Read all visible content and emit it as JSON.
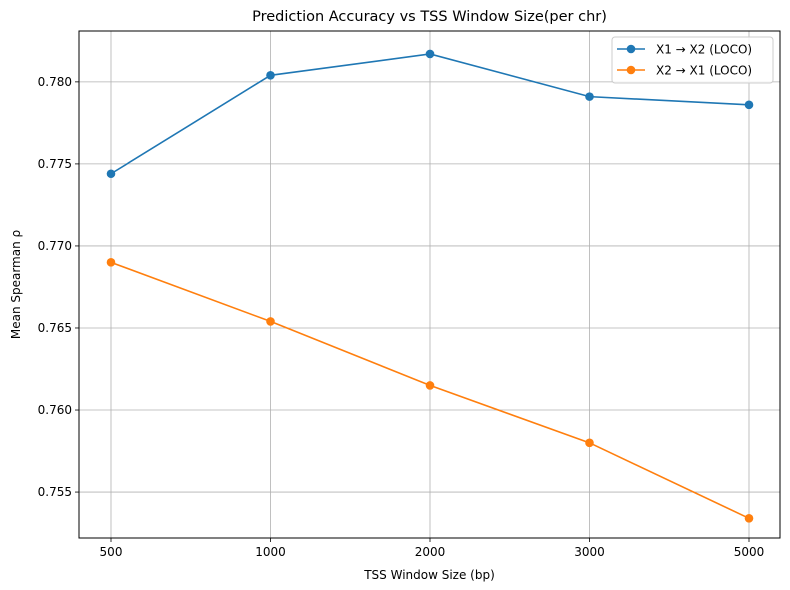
{
  "chart_data": {
    "type": "line",
    "title": "Prediction Accuracy vs TSS Window Size(per chr)",
    "xlabel": "TSS Window Size (bp)",
    "ylabel": "Mean Spearman ρ",
    "categories": [
      "500",
      "1000",
      "2000",
      "3000",
      "5000"
    ],
    "yticks": [
      "0.755",
      "0.760",
      "0.765",
      "0.770",
      "0.775",
      "0.780"
    ],
    "ylim": [
      0.7522,
      0.7831
    ],
    "grid": true,
    "legend_position": "top-right",
    "series": [
      {
        "name": "X1 → X2 (LOCO)",
        "color": "#1f77b4",
        "values": [
          0.7744,
          0.7804,
          0.7817,
          0.7791,
          0.7786
        ]
      },
      {
        "name": "X2 → X1 (LOCO)",
        "color": "#ff7f0e",
        "values": [
          0.769,
          0.7654,
          0.7615,
          0.758,
          0.7534
        ]
      }
    ]
  }
}
